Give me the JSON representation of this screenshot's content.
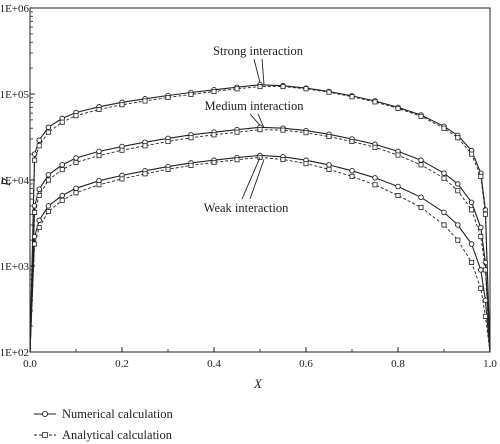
{
  "chart_data": {
    "type": "line",
    "xlabel": "X",
    "ylabel": "P",
    "xlim": [
      0.0,
      1.0
    ],
    "ylim": [
      100,
      1000000
    ],
    "yscale": "log",
    "grid": false,
    "legend_position": "bottom-left",
    "x_ticks": [
      0.0,
      0.2,
      0.4,
      0.6,
      0.8,
      1.0
    ],
    "x_tick_labels": [
      "0.0",
      "0.2",
      "0.4",
      "0.6",
      "0.8",
      "1.0"
    ],
    "y_ticks": [
      100,
      1000,
      10000,
      100000,
      1000000
    ],
    "y_tick_labels": [
      "1E+02",
      "1E+03",
      "1E+04",
      "1E+05",
      "1E+06"
    ],
    "x": [
      0.0,
      0.01,
      0.02,
      0.04,
      0.07,
      0.1,
      0.15,
      0.2,
      0.25,
      0.3,
      0.35,
      0.4,
      0.45,
      0.5,
      0.55,
      0.6,
      0.65,
      0.7,
      0.75,
      0.8,
      0.85,
      0.9,
      0.93,
      0.96,
      0.98,
      0.99,
      1.0
    ],
    "series": [
      {
        "name": "Numerical calculation",
        "style": "solid-circle",
        "group": "Strong interaction",
        "values": [
          100,
          20000,
          29000,
          41000,
          52000,
          61000,
          71000,
          80000,
          88000,
          96000,
          104000,
          112000,
          120000,
          128000,
          125000,
          117000,
          107000,
          95000,
          83000,
          70000,
          57000,
          42000,
          33000,
          22000,
          12000,
          4500,
          100
        ]
      },
      {
        "name": "Analytical calculation",
        "style": "dashed-square",
        "group": "Strong interaction",
        "values": [
          100,
          17000,
          25000,
          36000,
          47000,
          56000,
          66000,
          75000,
          83000,
          91000,
          99000,
          107000,
          115000,
          122000,
          122000,
          115000,
          105000,
          93000,
          81000,
          68000,
          55000,
          40000,
          31000,
          20000,
          11000,
          4000,
          100
        ]
      },
      {
        "name": "Numerical calculation",
        "style": "solid-circle",
        "group": "Medium interaction",
        "values": [
          100,
          5000,
          7800,
          11500,
          15000,
          18000,
          21500,
          24500,
          27500,
          30500,
          33500,
          36000,
          38500,
          41000,
          40000,
          37500,
          34000,
          30000,
          26000,
          21500,
          17000,
          12000,
          9000,
          5500,
          2800,
          1100,
          100
        ]
      },
      {
        "name": "Analytical calculation",
        "style": "dashed-square",
        "group": "Medium interaction",
        "values": [
          100,
          4200,
          6600,
          10000,
          13200,
          16000,
          19200,
          22200,
          25000,
          28000,
          31000,
          33500,
          36000,
          38500,
          38000,
          35500,
          32000,
          28000,
          24000,
          19500,
          15000,
          10500,
          7500,
          4500,
          2200,
          900,
          100
        ]
      },
      {
        "name": "Numerical calculation",
        "style": "solid-circle",
        "group": "Weak interaction",
        "values": [
          100,
          2200,
          3400,
          5000,
          6600,
          8000,
          9800,
          11300,
          12800,
          14300,
          15800,
          17000,
          18200,
          19300,
          18600,
          17000,
          15000,
          12800,
          10600,
          8400,
          6300,
          4200,
          3000,
          1800,
          900,
          400,
          100
        ]
      },
      {
        "name": "Analytical calculation",
        "style": "dashed-square",
        "group": "Weak interaction",
        "values": [
          100,
          1800,
          2800,
          4300,
          5800,
          7100,
          8800,
          10300,
          11800,
          13300,
          14800,
          16000,
          17200,
          18300,
          17300,
          15500,
          13300,
          11000,
          8800,
          6600,
          4800,
          3000,
          2000,
          1100,
          550,
          260,
          100
        ]
      }
    ],
    "annotations": [
      {
        "text": "Strong interaction",
        "points_to": [
          [
            0.5,
            128000
          ],
          [
            0.5,
            122000
          ]
        ]
      },
      {
        "text": "Medium interaction",
        "points_to": [
          [
            0.5,
            41000
          ],
          [
            0.5,
            38500
          ]
        ]
      },
      {
        "text": "Weak interaction",
        "points_to": [
          [
            0.5,
            19300
          ],
          [
            0.5,
            18300
          ]
        ]
      }
    ],
    "legend": [
      {
        "label": "Numerical calculation",
        "style": "solid-circle"
      },
      {
        "label": "Analytical calculation",
        "style": "dashed-square"
      }
    ]
  }
}
